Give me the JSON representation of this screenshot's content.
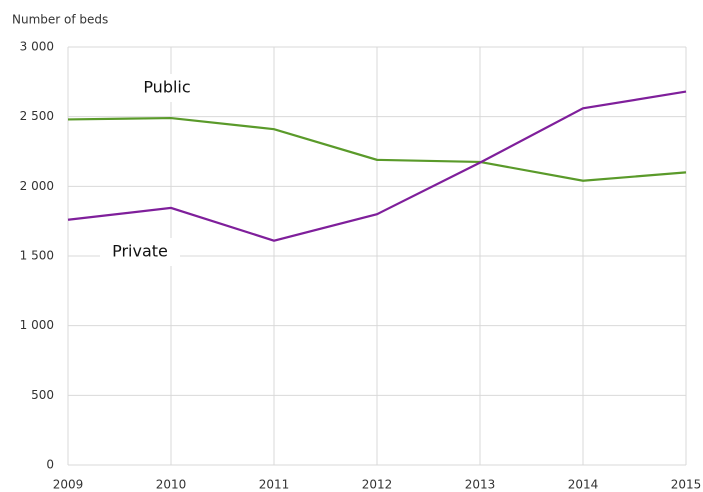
{
  "chart_data": {
    "type": "line",
    "y_label": "Number of beds",
    "x": [
      2009,
      2010,
      2011,
      2012,
      2013,
      2014,
      2015
    ],
    "xlim": [
      2009,
      2015
    ],
    "xticks": [
      2009,
      2010,
      2011,
      2012,
      2013,
      2014,
      2015
    ],
    "ylim": [
      0,
      3000
    ],
    "yticks": [
      0,
      500,
      {
        "value": 1000,
        "label": "1 000"
      },
      {
        "value": 1500,
        "label": "1 500"
      },
      {
        "value": 2000,
        "label": "2 000"
      },
      {
        "value": 2500,
        "label": "2 500"
      },
      {
        "value": 3000,
        "label": "3 000"
      }
    ],
    "grid": true,
    "series": [
      {
        "name": "Public",
        "color": "#5a9a2a",
        "values": [
          2480,
          2490,
          2410,
          2190,
          2175,
          2040,
          2100
        ]
      },
      {
        "name": "Private",
        "color": "#7f1f9b",
        "values": [
          1760,
          1845,
          1610,
          1800,
          2170,
          2560,
          2680
        ]
      }
    ]
  }
}
